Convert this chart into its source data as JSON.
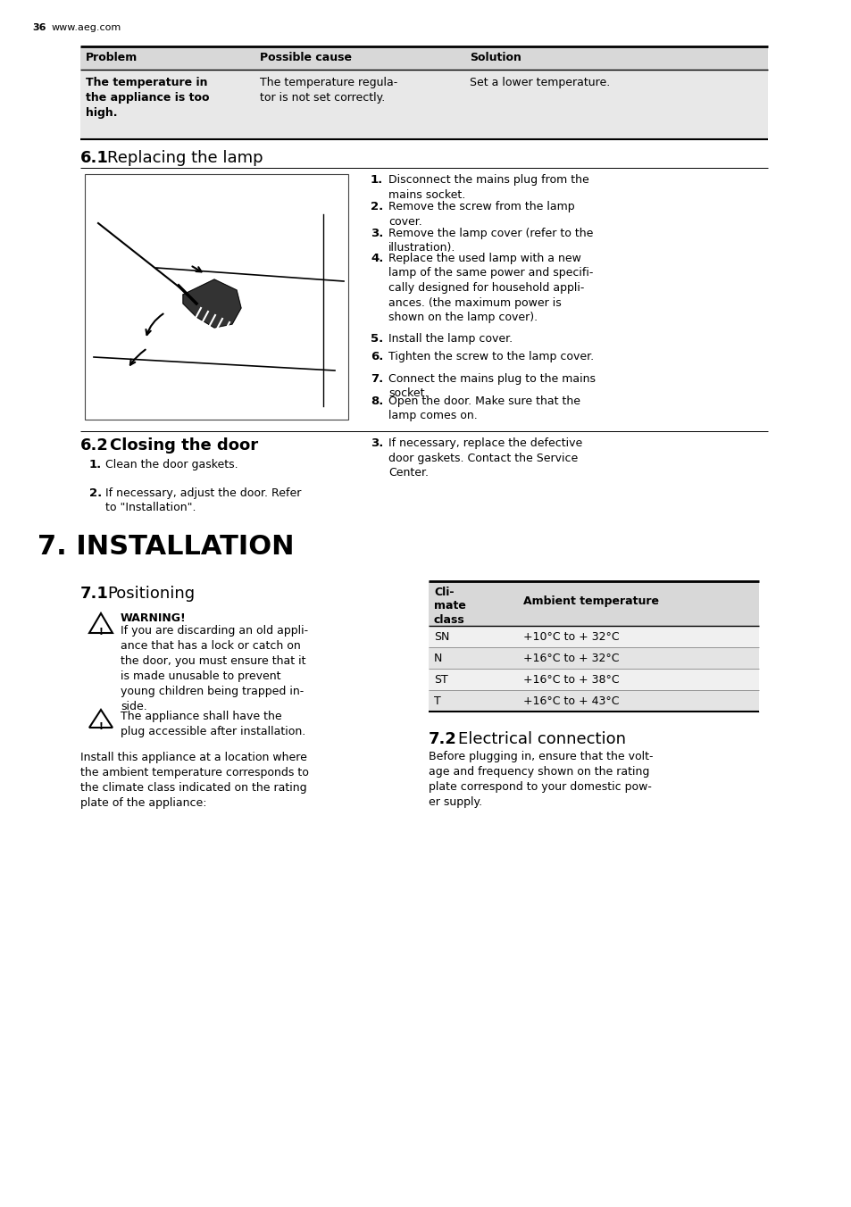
{
  "page_num": "36",
  "website": "www.aeg.com",
  "bg_color": "#ffffff",
  "table1_header": [
    "Problem",
    "Possible cause",
    "Solution"
  ],
  "table1_row1_col1": "The temperature in\nthe appliance is too\nhigh.",
  "table1_row1_col2": "The temperature regula-\ntor is not set correctly.",
  "table1_row1_col3": "Set a lower temperature.",
  "section_61_title_num": "6.1",
  "section_61_title_txt": "Replacing the lamp",
  "section_61_steps": [
    "Disconnect the mains plug from the\nmains socket.",
    "Remove the screw from the lamp\ncover.",
    "Remove the lamp cover (refer to the\nillustration).",
    "Replace the used lamp with a new\nlamp of the same power and specifi-\ncally designed for household appli-\nances. (the maximum power is\nshown on the lamp cover).",
    "Install the lamp cover.",
    "Tighten the screw to the lamp cover.",
    "Connect the mains plug to the mains\nsocket.",
    "Open the door. Make sure that the\nlamp comes on."
  ],
  "section_62_title_num": "6.2",
  "section_62_title_txt": "Closing the door",
  "section_62_steps_left": [
    "Clean the door gaskets.",
    "If necessary, adjust the door. Refer\nto \"Installation\"."
  ],
  "section_62_step3": "If necessary, replace the defective\ndoor gaskets. Contact the Service\nCenter.",
  "section_7_title": "7. INSTALLATION",
  "section_71_title_num": "7.1",
  "section_71_title_txt": "Positioning",
  "warning_title": "WARNING!",
  "warning_text1": "If you are discarding an old appli-\nance that has a lock or catch on\nthe door, you must ensure that it\nis made unusable to prevent\nyoung children being trapped in-\nside.",
  "warning_text2": "The appliance shall have the\nplug accessible after installation.",
  "install_text": "Install this appliance at a location where\nthe ambient temperature corresponds to\nthe climate class indicated on the rating\nplate of the appliance:",
  "table2_rows": [
    [
      "SN",
      "+10°C to + 32°C"
    ],
    [
      "N",
      "+16°C to + 32°C"
    ],
    [
      "ST",
      "+16°C to + 38°C"
    ],
    [
      "T",
      "+16°C to + 43°C"
    ]
  ],
  "section_72_title_num": "7.2",
  "section_72_title_txt": "Electrical connection",
  "section_72_text": "Before plugging in, ensure that the volt-\nage and frequency shown on the rating\nplate correspond to your domestic pow-\ner supply."
}
